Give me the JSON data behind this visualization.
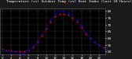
{
  "title": "   Temperature (vs) Outdoor Temp (vs) Heat Index (Last 24 Hours)",
  "title_fontsize": 3.2,
  "background_color": "#1a1a1a",
  "plot_bg_color": "#000000",
  "temp_color": "#ff0000",
  "heat_color": "#0000ff",
  "grid_color": "#555555",
  "hours": [
    0,
    1,
    2,
    3,
    4,
    5,
    6,
    7,
    8,
    9,
    10,
    11,
    12,
    13,
    14,
    15,
    16,
    17,
    18,
    19,
    20,
    21,
    22,
    23
  ],
  "temp_values": [
    52,
    51,
    51,
    50,
    50,
    50,
    51,
    53,
    57,
    62,
    67,
    72,
    76,
    78,
    78,
    77,
    75,
    72,
    68,
    63,
    60,
    57,
    55,
    53
  ],
  "heat_values": [
    52,
    51,
    50,
    50,
    49,
    49,
    51,
    54,
    58,
    63,
    68,
    74,
    78,
    80,
    80,
    79,
    77,
    74,
    69,
    64,
    60,
    57,
    55,
    52
  ],
  "ylim": [
    48,
    82
  ],
  "yticks": [
    50,
    55,
    60,
    65,
    70,
    75,
    80
  ],
  "ytick_labels": [
    "50",
    "55",
    "60",
    "65",
    "70",
    "75",
    "80"
  ],
  "marker_size": 1.0,
  "tick_fontsize": 3.0,
  "xlabel_fontsize": 2.8,
  "xticks": [
    0,
    2,
    4,
    6,
    8,
    10,
    12,
    14,
    16,
    18,
    20,
    22
  ],
  "xtick_labels": [
    "0",
    "2",
    "4",
    "6",
    "8",
    "10",
    "12",
    "14",
    "16",
    "18",
    "20",
    "22"
  ]
}
